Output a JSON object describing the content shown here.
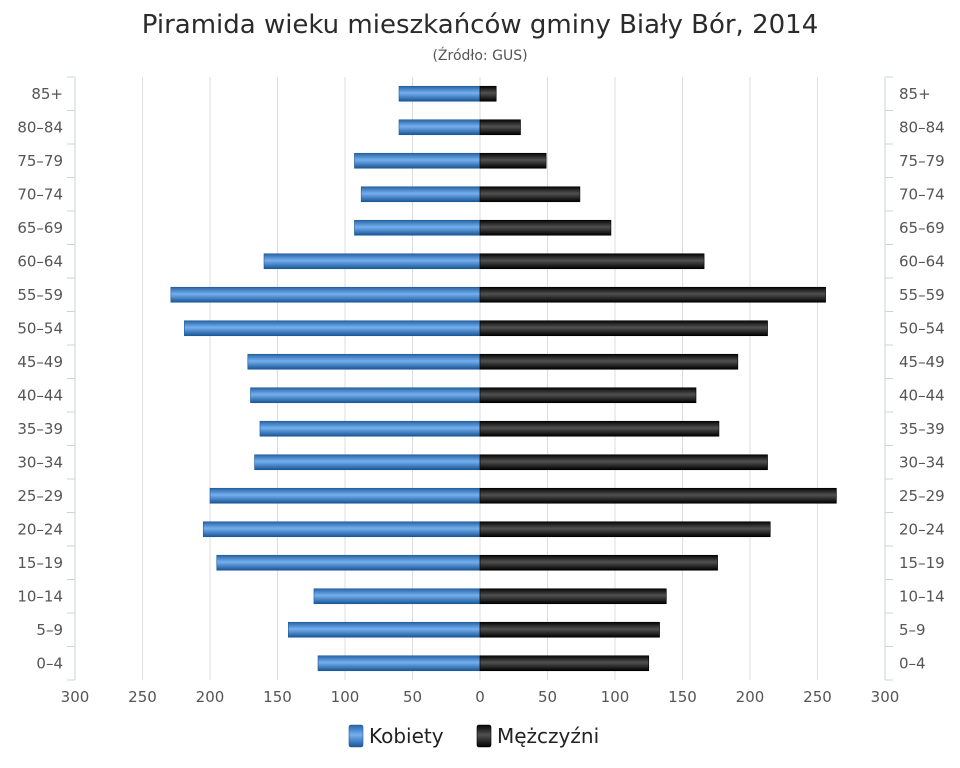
{
  "chart_data": {
    "type": "bar",
    "orientation": "horizontal",
    "title": "Piramida wieku mieszkańców gminy Biały Bór, 2014",
    "subtitle": "(Źródło: GUS)",
    "categories": [
      "85+",
      "80–84",
      "75–79",
      "70–74",
      "65–69",
      "60–64",
      "55–59",
      "50–54",
      "45–49",
      "40–44",
      "35–39",
      "30–34",
      "25–29",
      "20–24",
      "15–19",
      "10–14",
      "5–9",
      "0–4"
    ],
    "series": [
      {
        "name": "Kobiety",
        "color": "#3d78b8",
        "side": "left",
        "values": [
          60,
          60,
          93,
          88,
          93,
          160,
          229,
          219,
          172,
          170,
          163,
          167,
          200,
          205,
          195,
          123,
          142,
          120
        ]
      },
      {
        "name": "Mężczyźni",
        "color": "#1a1a1a",
        "side": "right",
        "values": [
          12,
          30,
          49,
          74,
          97,
          166,
          256,
          213,
          191,
          160,
          177,
          213,
          264,
          215,
          176,
          138,
          133,
          125
        ]
      }
    ],
    "xlim": [
      -300,
      300
    ],
    "x_ticks": [
      -300,
      -250,
      -200,
      -150,
      -100,
      -50,
      0,
      50,
      100,
      150,
      200,
      250,
      300
    ],
    "x_tick_labels": [
      "300",
      "250",
      "200",
      "150",
      "100",
      "50",
      "0",
      "50",
      "100",
      "150",
      "200",
      "250",
      "300"
    ],
    "grid": true,
    "legend": "bottom"
  }
}
